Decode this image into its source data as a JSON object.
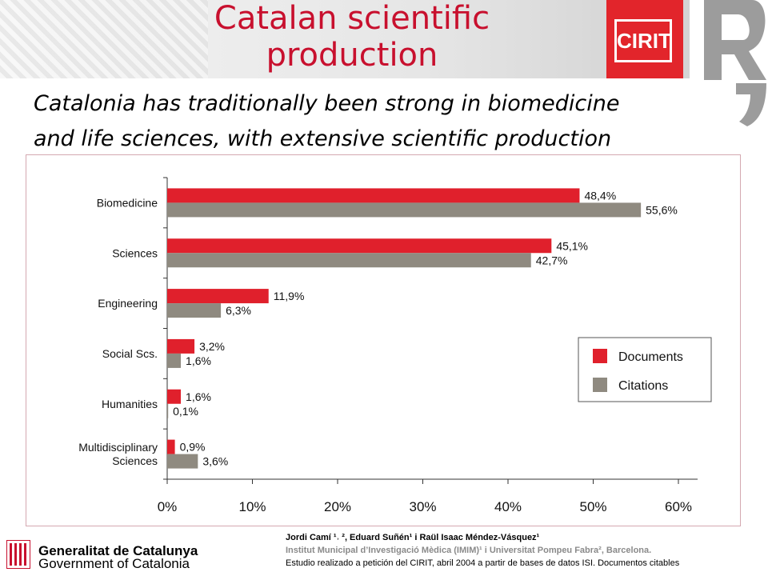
{
  "header": {
    "title_line1": "Catalan scientific",
    "title_line2": "production",
    "cirit_logo": "CIRIT",
    "r_logo": "R"
  },
  "subtitle": {
    "line1": "Catalonia has traditionally been strong in biomedicine",
    "line2": "and life sciences, with extensive scientific production"
  },
  "chart_data": {
    "type": "bar",
    "orientation": "horizontal",
    "categories": [
      "Biomedicine",
      "Sciences",
      "Engineering",
      "Social Scs.",
      "Humanities",
      "Multidisciplinary Sciences"
    ],
    "category_lines": [
      [
        "Biomedicine"
      ],
      [
        "Sciences"
      ],
      [
        "Engineering"
      ],
      [
        "Social Scs."
      ],
      [
        "Humanities"
      ],
      [
        "Multidisciplinary",
        "Sciences"
      ]
    ],
    "series": [
      {
        "name": "Documents",
        "color": "#e0202c",
        "values": [
          48.4,
          45.1,
          11.9,
          3.2,
          1.6,
          0.9
        ],
        "labels": [
          "48,4%",
          "45,1%",
          "11,9%",
          "3,2%",
          "1,6%",
          "0,9%"
        ]
      },
      {
        "name": "Citations",
        "color": "#8f8a80",
        "values": [
          55.6,
          42.7,
          6.3,
          1.6,
          0.1,
          3.6
        ],
        "labels": [
          "55,6%",
          "42,7%",
          "6,3%",
          "1,6%",
          "0,1%",
          "3,6%"
        ]
      }
    ],
    "xlim": [
      0,
      60
    ],
    "xticks": [
      0,
      10,
      20,
      30,
      40,
      50,
      60
    ],
    "xtick_labels": [
      "0%",
      "10%",
      "20%",
      "30%",
      "40%",
      "50%",
      "60%"
    ],
    "legend_position": "right",
    "grid": false
  },
  "footer": {
    "org_name": "Generalitat de Catalunya",
    "org_sub": "Government of Catalonia",
    "authors": "Jordi Camí ¹˒ ², Eduard Suñén¹ i Raül Isaac Méndez-Vásquez¹",
    "institution": "Institut Municipal d’Investigació Mèdica (IMIM)¹ i Universitat Pompeu Fabra², Barcelona.",
    "study": "Estudio realizado a petición del CIRIT, abril 2004 a partir de bases de datos ISI. Documentos citables"
  }
}
